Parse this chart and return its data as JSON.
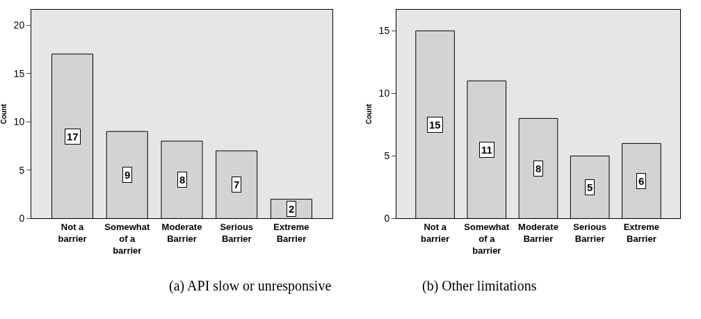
{
  "chart_data": [
    {
      "type": "bar",
      "title": "(a) API slow or unresponsive",
      "ylabel": "Count",
      "categories": [
        "Not a barrier",
        "Somewhat of a barrier",
        "Moderate Barrier",
        "Serious Barrier",
        "Extreme Barrier"
      ],
      "values": [
        17,
        9,
        8,
        7,
        2
      ],
      "color": "#d3d3d3",
      "ylim": [
        0,
        21.6
      ],
      "yticks": [
        0,
        5,
        10,
        15,
        20
      ],
      "data_labels": true,
      "grid": false
    },
    {
      "type": "bar",
      "title": "(b) Other limitations",
      "ylabel": "Count",
      "categories": [
        "Not a barrier",
        "Somewhat of a barrier",
        "Moderate Barrier",
        "Serious Barrier",
        "Extreme Barrier"
      ],
      "values": [
        15,
        11,
        8,
        5,
        6
      ],
      "color": "#d3d3d3",
      "ylim": [
        0,
        16.7
      ],
      "yticks": [
        0,
        5,
        10,
        15
      ],
      "data_labels": true,
      "grid": false
    }
  ]
}
